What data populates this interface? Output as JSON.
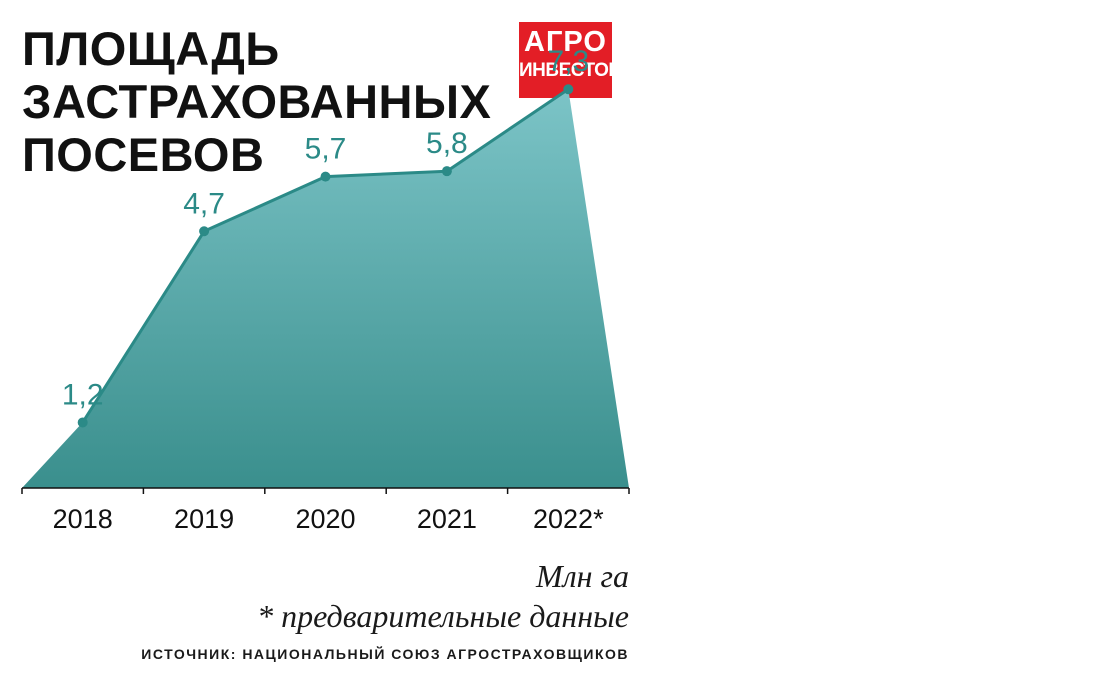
{
  "title_lines": [
    "ПЛОЩАДЬ",
    "ЗАСТРАХОВАННЫХ",
    "ПОСЕВОВ"
  ],
  "logo": {
    "line1": "АГРО",
    "line2": "ИНВЕСТОР"
  },
  "colors": {
    "line": "#2b8a87",
    "fill_top": "#7cc4c7",
    "fill_bottom": "#3a8f8d",
    "label": "#2b8a87",
    "logo": "#e31e26"
  },
  "chart_data": {
    "type": "area",
    "categories": [
      "2018",
      "2019",
      "2020",
      "2021",
      "2022*"
    ],
    "values": [
      1.2,
      4.7,
      5.7,
      5.8,
      7.3
    ],
    "data_labels": [
      "1,2",
      "4,7",
      "5,7",
      "5,8",
      "7,3"
    ],
    "unit": "Млн га",
    "title": "ПЛОЩАДЬ ЗАСТРАХОВАННЫХ ПОСЕВОВ",
    "ylim": [
      0,
      8
    ],
    "grid": false
  },
  "footnote": "* предварительные данные",
  "source": "ИСТОЧНИК: НАЦИОНАЛЬНЫЙ СОЮЗ АГРОСТРАХОВЩИКОВ"
}
